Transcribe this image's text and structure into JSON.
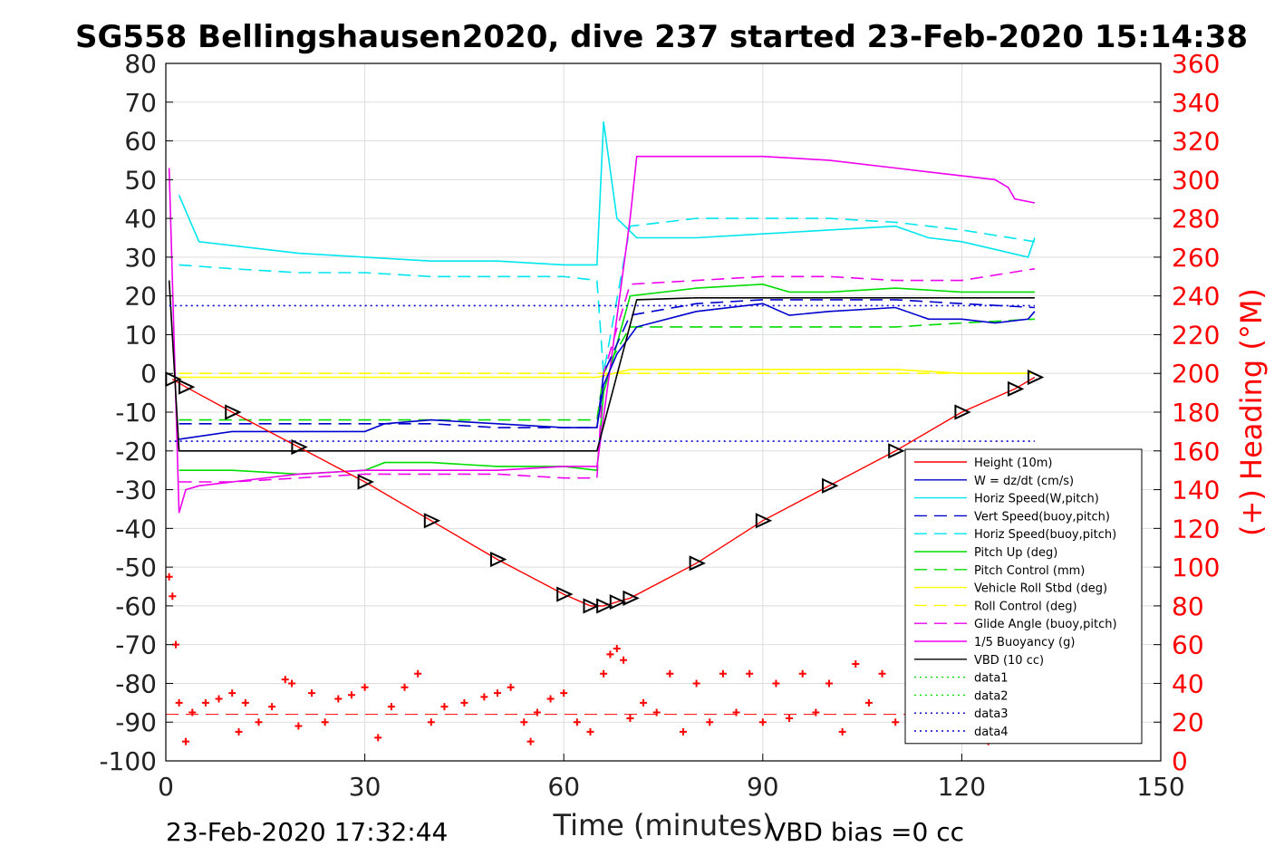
{
  "chart_data": {
    "type": "line",
    "title": "SG558 Bellingshausen2020, dive 237 started 23-Feb-2020 15:14:38",
    "xlabel": "Time (minutes)",
    "ylabel_right": "(+) Heading (°M)",
    "xlim": [
      0,
      150
    ],
    "ylim": [
      -100,
      80
    ],
    "ylim_right": [
      0,
      360
    ],
    "xticks": [
      0,
      30,
      60,
      90,
      120,
      150
    ],
    "yticks": [
      -100,
      -90,
      -80,
      -70,
      -60,
      -50,
      -40,
      -30,
      -20,
      -10,
      0,
      10,
      20,
      30,
      40,
      50,
      60,
      70,
      80
    ],
    "yticks_right": [
      0,
      20,
      40,
      60,
      80,
      100,
      120,
      140,
      160,
      180,
      200,
      220,
      240,
      260,
      280,
      300,
      320,
      340,
      360
    ],
    "grid": true,
    "legend_position": "lower-right",
    "footer_left": "23-Feb-2020 17:32:44",
    "footer_right": "VBD bias =0 cc",
    "colors": {
      "height": "#ff0000",
      "w": "#0000cc",
      "horiz_speed": "#00e5ee",
      "pitch": "#00dd00",
      "roll": "#ffff00",
      "glide": "#ee00ee",
      "buoyancy": "#ee00ee",
      "vbd": "#000000",
      "heading": "#ff0000"
    },
    "series": [
      {
        "name": "Height (10m)",
        "x": [
          1,
          3,
          10,
          20,
          30,
          40,
          50,
          60,
          64,
          66,
          68,
          70,
          80,
          90,
          100,
          110,
          120,
          128,
          131
        ],
        "y": [
          -1.5,
          -3.5,
          -10,
          -19,
          -28,
          -38,
          -48,
          -57,
          -60,
          -60,
          -59,
          -58,
          -49,
          -38,
          -29,
          -20,
          -10,
          -4,
          -1
        ]
      },
      {
        "name": "W = dz/dt (cm/s)",
        "x": [
          2,
          10,
          20,
          30,
          33,
          40,
          50,
          60,
          65,
          66,
          68,
          71,
          80,
          90,
          94,
          100,
          110,
          115,
          120,
          125,
          130,
          131
        ],
        "y": [
          -17,
          -15,
          -15,
          -15,
          -13,
          -12,
          -13,
          -14,
          -14,
          -3,
          5,
          12,
          16,
          18,
          15,
          16,
          17,
          14,
          14,
          13,
          14,
          16
        ]
      },
      {
        "name": "Horiz Speed(W,pitch)",
        "x": [
          2,
          5,
          10,
          20,
          30,
          40,
          50,
          60,
          65,
          66,
          68,
          71,
          80,
          90,
          100,
          110,
          115,
          120,
          125,
          130,
          131
        ],
        "y": [
          46,
          34,
          33,
          31,
          30,
          29,
          29,
          28,
          28,
          65,
          40,
          35,
          35,
          36,
          37,
          38,
          35,
          34,
          32,
          30,
          35
        ]
      },
      {
        "name": "Vert Speed(buoy,pitch)",
        "x": [
          2,
          10,
          20,
          30,
          40,
          50,
          60,
          65,
          66,
          70,
          80,
          90,
          100,
          110,
          120,
          131
        ],
        "y": [
          -13,
          -13,
          -13,
          -13,
          -13,
          -14,
          -14,
          -14,
          0,
          15,
          18,
          19,
          19,
          19,
          18,
          17
        ]
      },
      {
        "name": "Horiz Speed(buoy,pitch)",
        "x": [
          2,
          10,
          20,
          30,
          40,
          50,
          60,
          65,
          66,
          70,
          80,
          90,
          100,
          110,
          120,
          131
        ],
        "y": [
          28,
          27,
          26,
          26,
          25,
          25,
          25,
          24,
          0,
          38,
          40,
          40,
          40,
          39,
          37,
          34
        ]
      },
      {
        "name": "Pitch Up (deg)",
        "x": [
          2,
          10,
          20,
          30,
          33,
          40,
          50,
          60,
          65,
          66,
          70,
          80,
          90,
          94,
          100,
          110,
          120,
          131
        ],
        "y": [
          -25,
          -25,
          -26,
          -25,
          -23,
          -23,
          -24,
          -24,
          -25,
          -5,
          20,
          22,
          23,
          21,
          21,
          22,
          21,
          21
        ]
      },
      {
        "name": "Pitch Control (mm)",
        "x": [
          2,
          10,
          20,
          30,
          40,
          50,
          60,
          65,
          66,
          70,
          80,
          90,
          100,
          110,
          120,
          131
        ],
        "y": [
          -12,
          -12,
          -12,
          -12,
          -12,
          -12,
          -12,
          -12,
          0,
          12,
          12,
          12,
          12,
          12,
          13,
          14
        ]
      },
      {
        "name": "Vehicle Roll Stbd (deg)",
        "x": [
          2,
          10,
          20,
          30,
          40,
          50,
          60,
          65,
          70,
          80,
          90,
          100,
          110,
          120,
          131
        ],
        "y": [
          -1,
          -1,
          -1,
          -1,
          -1,
          -1,
          -1,
          -1,
          1,
          1,
          1,
          1,
          1,
          0,
          0
        ]
      },
      {
        "name": "Roll Control (deg)",
        "x": [
          2,
          10,
          20,
          30,
          40,
          50,
          60,
          65,
          70,
          80,
          90,
          100,
          110,
          120,
          131
        ],
        "y": [
          0,
          0,
          0,
          0,
          0,
          0,
          0,
          0,
          0,
          0,
          0,
          0,
          0,
          0,
          0
        ]
      },
      {
        "name": "Glide Angle (buoy,pitch)",
        "x": [
          2,
          10,
          20,
          30,
          40,
          50,
          60,
          65,
          66,
          70,
          80,
          90,
          100,
          110,
          120,
          131
        ],
        "y": [
          -28,
          -28,
          -27,
          -26,
          -26,
          -26,
          -27,
          -27,
          0,
          23,
          24,
          25,
          25,
          24,
          24,
          27
        ]
      },
      {
        "name": "1/5 Buoyancy (g)",
        "x": [
          0.5,
          2,
          3,
          5,
          10,
          20,
          30,
          40,
          50,
          60,
          65,
          70,
          71,
          80,
          90,
          100,
          110,
          120,
          125,
          127,
          128,
          131
        ],
        "y": [
          53,
          -36,
          -30,
          -29,
          -28,
          -26,
          -25,
          -25,
          -25,
          -24,
          -24,
          40,
          56,
          56,
          56,
          55,
          53,
          51,
          50,
          48,
          45,
          44
        ]
      },
      {
        "name": "VBD (10 cc)",
        "x": [
          0.5,
          2,
          5,
          10,
          20,
          30,
          40,
          50,
          60,
          65,
          71,
          80,
          90,
          100,
          110,
          120,
          131
        ],
        "y": [
          24,
          -20,
          -20,
          -20,
          -20,
          -20,
          -20,
          -20,
          -20,
          -20,
          19,
          19.5,
          19.5,
          19.5,
          19.5,
          19.5,
          19.5
        ]
      },
      {
        "name": "data1",
        "x": [],
        "y": []
      },
      {
        "name": "data2",
        "x": [],
        "y": []
      },
      {
        "name": "data3",
        "x": [
          0.5,
          131
        ],
        "y": [
          17.5,
          17.5
        ]
      },
      {
        "name": "data4",
        "x": [
          0.5,
          131
        ],
        "y": [
          -17.5,
          -17.5
        ]
      }
    ],
    "heading": {
      "x": [
        0.5,
        1,
        1.5,
        2,
        3,
        4,
        6,
        8,
        10,
        11,
        12,
        14,
        16,
        18,
        19,
        20,
        22,
        24,
        26,
        28,
        30,
        32,
        34,
        36,
        38,
        40,
        42,
        45,
        48,
        50,
        52,
        54,
        55,
        56,
        58,
        60,
        62,
        64,
        66,
        67,
        68,
        69,
        70,
        72,
        74,
        76,
        78,
        80,
        82,
        84,
        86,
        88,
        90,
        92,
        94,
        96,
        98,
        100,
        102,
        104,
        106,
        108,
        110,
        112,
        114,
        116,
        118,
        120,
        122,
        124
      ],
      "y": [
        95,
        85,
        60,
        30,
        10,
        25,
        30,
        32,
        35,
        15,
        30,
        20,
        28,
        42,
        40,
        18,
        35,
        20,
        32,
        34,
        38,
        12,
        28,
        38,
        45,
        20,
        28,
        30,
        33,
        35,
        38,
        20,
        10,
        25,
        32,
        35,
        20,
        15,
        45,
        55,
        58,
        52,
        22,
        30,
        25,
        45,
        15,
        40,
        20,
        45,
        25,
        45,
        20,
        40,
        22,
        45,
        25,
        40,
        15,
        50,
        30,
        45,
        20,
        35,
        30,
        45,
        40,
        15,
        20,
        10
      ],
      "reference": 24
    }
  },
  "legend": {
    "entries": [
      {
        "label": "Height (10m)",
        "color": "#ff0000",
        "dash": "solid"
      },
      {
        "label": "W = dz/dt (cm/s)",
        "color": "#0000cc",
        "dash": "solid"
      },
      {
        "label": "Horiz Speed(W,pitch)",
        "color": "#00e5ee",
        "dash": "solid"
      },
      {
        "label": "Vert Speed(buoy,pitch)",
        "color": "#0000cc",
        "dash": "dashed"
      },
      {
        "label": "Horiz Speed(buoy,pitch)",
        "color": "#00e5ee",
        "dash": "dashed"
      },
      {
        "label": "Pitch Up (deg)",
        "color": "#00dd00",
        "dash": "solid"
      },
      {
        "label": "Pitch Control (mm)",
        "color": "#00dd00",
        "dash": "dashed"
      },
      {
        "label": "Vehicle Roll Stbd (deg)",
        "color": "#ffff00",
        "dash": "solid"
      },
      {
        "label": "Roll Control (deg)",
        "color": "#ffff00",
        "dash": "dashed"
      },
      {
        "label": "Glide Angle (buoy,pitch)",
        "color": "#ee00ee",
        "dash": "dashed"
      },
      {
        "label": "1/5 Buoyancy (g)",
        "color": "#ee00ee",
        "dash": "solid"
      },
      {
        "label": "VBD (10 cc)",
        "color": "#000000",
        "dash": "solid"
      },
      {
        "label": "data1",
        "color": "#00dd00",
        "dash": "dotted"
      },
      {
        "label": "data2",
        "color": "#00dd00",
        "dash": "dotted"
      },
      {
        "label": "data3",
        "color": "#0000cc",
        "dash": "dotted"
      },
      {
        "label": "data4",
        "color": "#0000cc",
        "dash": "dotted"
      }
    ]
  }
}
